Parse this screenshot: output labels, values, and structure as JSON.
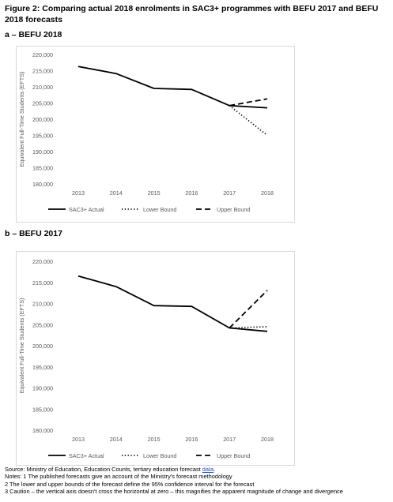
{
  "figure_title": "Figure 2: Comparing actual 2018 enrolments in SAC3+ programmes with BEFU 2017 and BEFU 2018 forecasts",
  "chart_data": [
    {
      "panel_label": "a – BEFU 2018",
      "type": "line",
      "x": [
        "2013",
        "2014",
        "2015",
        "2016",
        "2017",
        "2018"
      ],
      "ylabel": "Equivalent Full-Time Students (EFTS)",
      "ylim": [
        180000,
        220000
      ],
      "yticks": [
        "220,000",
        "215,000",
        "210,000",
        "205,000",
        "200,000",
        "195,000",
        "190,000",
        "185,000",
        "180,000"
      ],
      "ytick_values": [
        220000,
        215000,
        210000,
        205000,
        200000,
        195000,
        190000,
        185000,
        180000
      ],
      "legend_position": "bottom",
      "series": [
        {
          "name": "SAC3+ Actual",
          "style": "solid",
          "values": [
            216300,
            214100,
            209500,
            209200,
            204200,
            203500
          ]
        },
        {
          "name": "Lower Bound",
          "style": "dotted",
          "values": [
            null,
            null,
            null,
            null,
            204200,
            195000
          ]
        },
        {
          "name": "Upper Bound",
          "style": "dashed",
          "values": [
            null,
            null,
            null,
            null,
            204200,
            206300
          ]
        }
      ]
    },
    {
      "panel_label": "b – BEFU 2017",
      "type": "line",
      "x": [
        "2013",
        "2014",
        "2015",
        "2016",
        "2017",
        "2018"
      ],
      "ylabel": "Equivalent Full-Time Students (EFTS)",
      "ylim": [
        180000,
        220000
      ],
      "yticks": [
        "220,000",
        "215,000",
        "210,000",
        "205,000",
        "200,000",
        "195,000",
        "190,000",
        "185,000",
        "180,000"
      ],
      "ytick_values": [
        220000,
        215000,
        210000,
        205000,
        200000,
        195000,
        190000,
        185000,
        180000
      ],
      "legend_position": "bottom",
      "series": [
        {
          "name": "SAC3+ Actual",
          "style": "solid",
          "values": [
            216500,
            214000,
            209500,
            209300,
            204200,
            203400
          ]
        },
        {
          "name": "Lower Bound",
          "style": "dotted",
          "values": [
            null,
            null,
            null,
            null,
            204200,
            204500
          ]
        },
        {
          "name": "Upper Bound",
          "style": "dashed",
          "values": [
            null,
            null,
            null,
            null,
            204200,
            213100
          ]
        }
      ]
    }
  ],
  "footnotes": {
    "source_prefix": "Source: Ministry of Education, Education Counts, tertiary education forecast ",
    "source_link": "data",
    "source_suffix": ".",
    "note1": "Notes: 1 The published forecasts give an account of the Ministry's forecast methodology",
    "note2": "2 The lower and upper bounds of the forecast define the 95% confidence interval for the forecast",
    "note3": "3 Caution – the vertical axis doesn't cross the horizontal at zero – this magnifies the apparent magnitude of change and divergence"
  }
}
